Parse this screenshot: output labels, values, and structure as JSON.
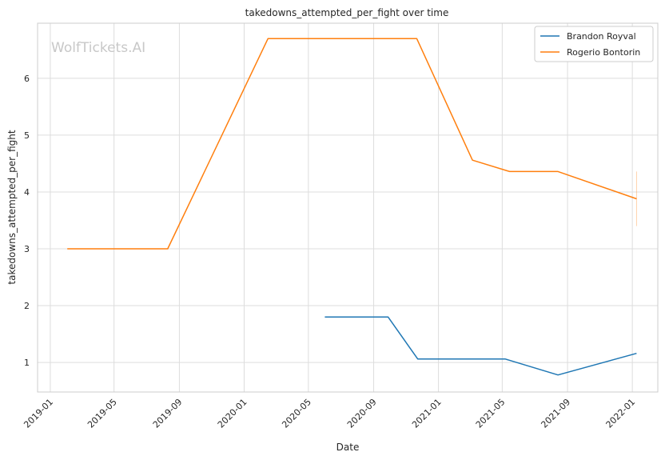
{
  "watermark": "WolfTickets.AI",
  "chart_data": {
    "type": "line",
    "title": "takedowns_attempted_per_fight over time",
    "xlabel": "Date",
    "ylabel": "takedowns_attempted_per_fight",
    "x_ticks": [
      "2019-01",
      "2019-05",
      "2019-09",
      "2020-01",
      "2020-05",
      "2020-09",
      "2021-01",
      "2021-05",
      "2021-09",
      "2022-01"
    ],
    "y_ticks": [
      1,
      2,
      3,
      4,
      5,
      6
    ],
    "xlim": [
      "2018-12-08",
      "2022-02-18"
    ],
    "ylim": [
      0.48,
      6.97
    ],
    "grid": true,
    "legend_position": "top-right",
    "series": [
      {
        "name": "Brandon Royval",
        "color": "#1f77b4",
        "points": [
          {
            "x": "2020-06-01",
            "y": 1.8
          },
          {
            "x": "2020-09-28",
            "y": 1.8
          },
          {
            "x": "2020-11-23",
            "y": 1.06
          },
          {
            "x": "2021-05-07",
            "y": 1.06
          },
          {
            "x": "2021-08-14",
            "y": 0.78
          },
          {
            "x": "2022-01-09",
            "y": 1.16
          }
        ]
      },
      {
        "name": "Rogerio Bontorin",
        "color": "#ff7f0e",
        "points": [
          {
            "x": "2019-02-02",
            "y": 3.0
          },
          {
            "x": "2019-08-10",
            "y": 3.0
          },
          {
            "x": "2020-02-15",
            "y": 6.7
          },
          {
            "x": "2020-11-21",
            "y": 6.7
          },
          {
            "x": "2021-03-06",
            "y": 4.56
          },
          {
            "x": "2021-05-15",
            "y": 4.36
          },
          {
            "x": "2021-08-14",
            "y": 4.36
          },
          {
            "x": "2022-01-09",
            "y": 3.88
          }
        ],
        "error_bar": {
          "x": "2022-01-09",
          "low": 3.4,
          "high": 4.36
        }
      }
    ]
  }
}
